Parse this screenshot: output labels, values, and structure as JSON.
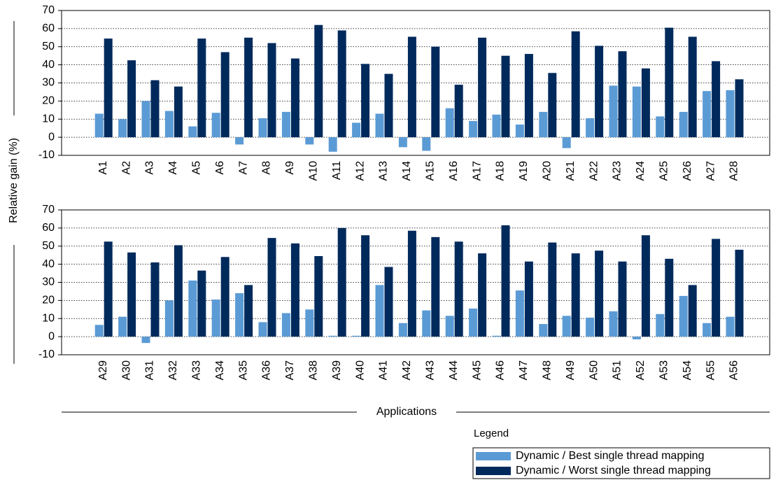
{
  "axis_labels": {
    "y": "Relative gain (%)",
    "x": "Applications"
  },
  "legend": {
    "title": "Legend"
  },
  "chart_data": [
    {
      "type": "bar",
      "categories": [
        "A1",
        "A2",
        "A3",
        "A4",
        "A5",
        "A6",
        "A7",
        "A8",
        "A9",
        "A10",
        "A11",
        "A12",
        "A13",
        "A14",
        "A15",
        "A16",
        "A17",
        "A18",
        "A19",
        "A20",
        "A21",
        "A22",
        "A23",
        "A24",
        "A25",
        "A26",
        "A27",
        "A28"
      ],
      "series": [
        {
          "name": "Dynamic / Best single thread mapping",
          "color": "#5b9bd5",
          "values": [
            13,
            10,
            20,
            14.5,
            6,
            13.5,
            -4,
            10.5,
            14,
            -4,
            -8,
            8,
            13,
            -5.5,
            -7.5,
            16,
            9,
            12.5,
            7,
            14,
            -6,
            10.5,
            28.5,
            28,
            11.5,
            14,
            25.5,
            26
          ]
        },
        {
          "name": "Dynamic / Worst single thread mapping",
          "color": "#002a5c",
          "values": [
            54.5,
            42.5,
            31.5,
            28,
            54.5,
            47,
            55,
            52,
            43.5,
            62,
            59,
            40.5,
            35,
            55.5,
            50,
            29,
            55,
            45,
            46,
            35.5,
            58.5,
            50.5,
            47.5,
            38,
            60.5,
            55.5,
            42,
            32
          ]
        }
      ],
      "ylim": [
        -10,
        70
      ],
      "yticks": [
        -10,
        0,
        10,
        20,
        30,
        40,
        50,
        60,
        70
      ],
      "grid": true
    },
    {
      "type": "bar",
      "categories": [
        "A29",
        "A30",
        "A31",
        "A32",
        "A33",
        "A34",
        "A35",
        "A36",
        "A37",
        "A38",
        "A39",
        "A40",
        "A41",
        "A42",
        "A43",
        "A44",
        "A45",
        "A46",
        "A47",
        "A48",
        "A49",
        "A50",
        "A51",
        "A52",
        "A53",
        "A54",
        "A55",
        "A56"
      ],
      "series": [
        {
          "color": "#5b9bd5",
          "values": [
            6.5,
            11,
            -3.5,
            20,
            31,
            20.5,
            24,
            8,
            13,
            15,
            0.5,
            0.5,
            28.5,
            7.5,
            14.5,
            11.5,
            15.5,
            0.5,
            25.5,
            7,
            11.5,
            10.5,
            14,
            -1.5,
            12.5,
            22.5,
            7.5,
            11
          ]
        },
        {
          "color": "#002a5c",
          "values": [
            52.5,
            46.5,
            41,
            50.5,
            36.5,
            44,
            28.5,
            54.5,
            51.5,
            44.5,
            60,
            56,
            38.5,
            58.5,
            55,
            52.5,
            46,
            61.5,
            41.5,
            52,
            46,
            47.5,
            41.5,
            56,
            43,
            28.5,
            54,
            48
          ]
        }
      ],
      "ylim": [
        -10,
        70
      ],
      "yticks": [
        -10,
        0,
        10,
        20,
        30,
        40,
        50,
        60,
        70
      ],
      "grid": true
    }
  ]
}
